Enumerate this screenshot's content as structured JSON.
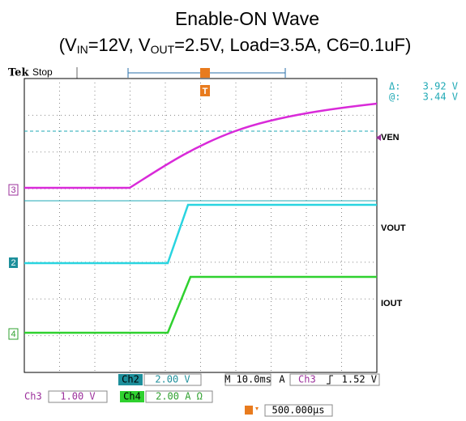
{
  "title": "Enable-ON Wave",
  "subtitle": {
    "p1": "(V",
    "s1": "IN",
    "p2": "=12V, V",
    "s2": "OUT",
    "p3": "=2.5V, Load=3.5A, C6=0.1uF)"
  },
  "scope": {
    "brand": "Tek",
    "status": "Stop",
    "cursor": {
      "delta_label": "Δ:",
      "delta_value": "3.92 V",
      "at_label": "@:",
      "at_value": "3.44 V"
    },
    "trace_labels": [
      "VEN",
      "VOUT",
      "IOUT"
    ],
    "channel_markers": [
      "3",
      "2",
      "4"
    ],
    "trigger_marker": "T",
    "readout": {
      "ch2": "Ch2",
      "ch2_scale": "2.00 V",
      "timebase": "M 10.0ms",
      "acq": "A",
      "trig_src": "Ch3",
      "trig_level": "1.52 V",
      "ch3": "Ch3",
      "ch3_scale": "1.00 V",
      "ch4": "Ch4",
      "ch4_scale": "2.00 A Ω",
      "position": "500.000µs"
    }
  }
}
